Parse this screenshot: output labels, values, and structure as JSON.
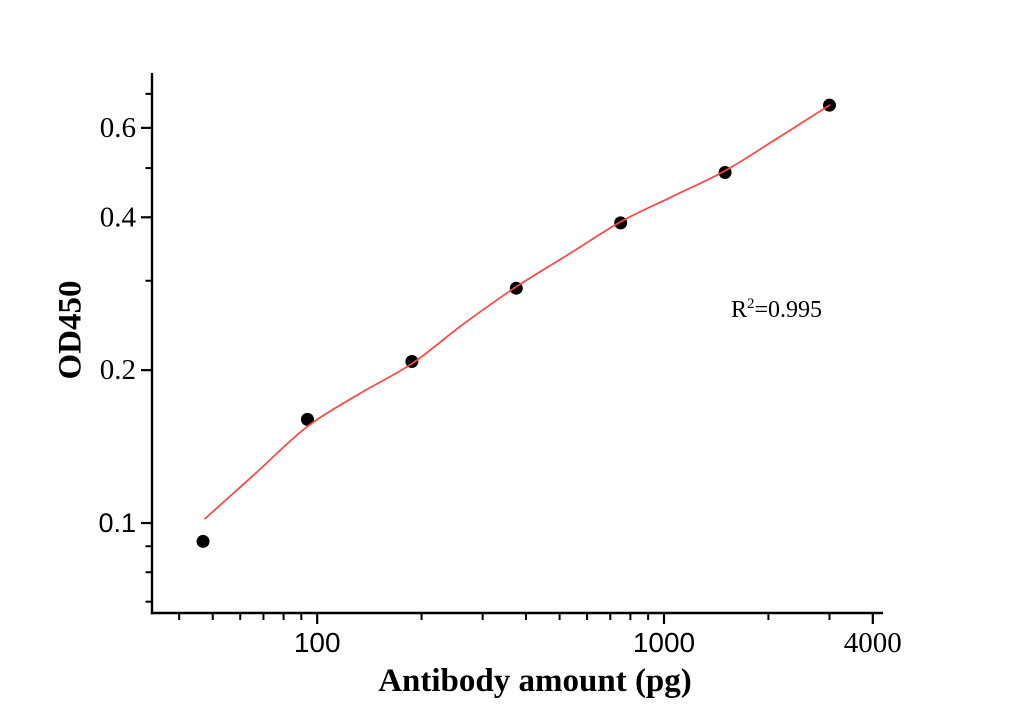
{
  "figure": {
    "background": "#ffffff",
    "axis_color": "#000000"
  },
  "annotation": {
    "prefix": "R",
    "superscript": "2",
    "suffix": "=0.995"
  },
  "chart_data": {
    "type": "scatter",
    "title": "",
    "xlabel": "Antibody amount (pg)",
    "ylabel": "OD450",
    "x_scale": "log",
    "y_scale": "log",
    "xlim": [
      33.4,
      4280
    ],
    "ylim": [
      0.0665,
      0.766
    ],
    "grid": false,
    "legend": "none",
    "annotation": "R²=0.995",
    "x_major_ticks": [
      {
        "value": 100,
        "label": "100",
        "font": "sans"
      },
      {
        "value": 1000,
        "label": "1000",
        "font": "sans"
      },
      {
        "value": 4000,
        "label": "4000",
        "font": "serif"
      }
    ],
    "x_minor_ticks": [
      40,
      50,
      60,
      70,
      80,
      90,
      200,
      300,
      400,
      500,
      600,
      700,
      800,
      900,
      2000,
      3000
    ],
    "y_major_ticks": [
      {
        "value": 0.1,
        "label": "0.1",
        "font": "sans"
      },
      {
        "value": 0.2,
        "label": "0.2",
        "font": "serif"
      },
      {
        "value": 0.4,
        "label": "0.4",
        "font": "serif"
      },
      {
        "value": 0.6,
        "label": "0.6",
        "font": "serif"
      }
    ],
    "y_minor_ticks": [
      0.07,
      0.08,
      0.09,
      0.3,
      0.5,
      0.7
    ],
    "series": [
      {
        "name": "OD450 measurements",
        "type": "scatter",
        "marker": "circle",
        "color": "#000000",
        "marker_radius": 6.5,
        "x": [
          46.875,
          93.75,
          187.5,
          375,
          750,
          1500,
          3000
        ],
        "y": [
          0.092,
          0.16,
          0.208,
          0.29,
          0.39,
          0.49,
          0.665
        ]
      },
      {
        "name": "Fitted curve",
        "type": "line",
        "color": "#fa4542",
        "r_squared": "0.995",
        "x": [
          47.5,
          67,
          93.75,
          133,
          187.5,
          265,
          375,
          530,
          750,
          1060,
          1500,
          2120,
          3000
        ],
        "y": [
          0.102,
          0.126,
          0.155,
          0.18,
          0.206,
          0.247,
          0.292,
          0.338,
          0.392,
          0.44,
          0.494,
          0.572,
          0.665
        ]
      }
    ]
  }
}
